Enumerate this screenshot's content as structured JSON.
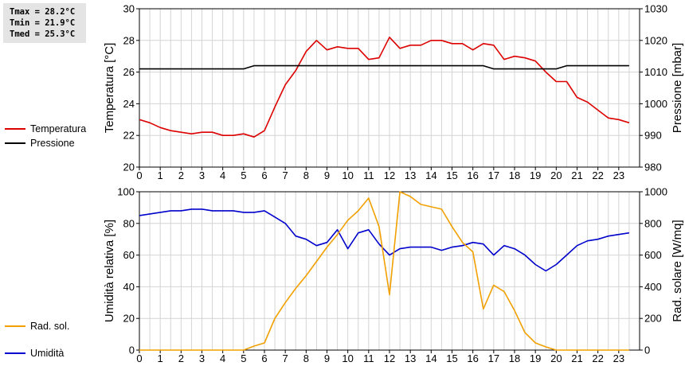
{
  "stats": {
    "tmax": "Tmax = 28.2°C",
    "tmin": "Tmin = 21.9°C",
    "tmed": "Tmed = 25.3°C"
  },
  "legend": {
    "top": [
      {
        "label": "Temperatura",
        "color": "#dd0000"
      },
      {
        "label": "Pressione",
        "color": "#000000"
      }
    ],
    "bottom": [
      {
        "label": "Umidità",
        "color": "#0000cc"
      },
      {
        "label": "Rad. sol.",
        "color": "#f2a000"
      }
    ]
  },
  "chart_data": [
    {
      "type": "line",
      "x_ticks": [
        0,
        1,
        2,
        3,
        4,
        5,
        6,
        7,
        8,
        9,
        10,
        11,
        12,
        13,
        14,
        15,
        16,
        17,
        18,
        19,
        20,
        21,
        22,
        23
      ],
      "xlim": [
        0,
        24
      ],
      "ylabel": "Temperatura [°C]",
      "ylim": [
        20,
        30
      ],
      "y_ticks": [
        20,
        22,
        24,
        26,
        28,
        30
      ],
      "y2label": "Pressione [mbar]",
      "y2lim": [
        980,
        1030
      ],
      "y2_ticks": [
        980,
        990,
        1000,
        1010,
        1020,
        1030
      ],
      "grid": true,
      "series": [
        {
          "name": "Temperatura",
          "axis": "left",
          "color": "#dd0000",
          "x": [
            0,
            0.5,
            1,
            1.5,
            2,
            2.5,
            3,
            3.5,
            4,
            4.5,
            5,
            5.5,
            6,
            6.5,
            7,
            7.5,
            8,
            8.5,
            9,
            9.5,
            10,
            10.5,
            11,
            11.5,
            12,
            12.5,
            13,
            13.5,
            14,
            14.5,
            15,
            15.5,
            16,
            16.5,
            17,
            17.5,
            18,
            18.5,
            19,
            19.5,
            20,
            20.5,
            21,
            21.5,
            22,
            22.5,
            23,
            23.5
          ],
          "values": [
            23.0,
            22.8,
            22.5,
            22.3,
            22.2,
            22.1,
            22.2,
            22.2,
            22.0,
            22.0,
            22.1,
            21.9,
            22.3,
            23.8,
            25.2,
            26.1,
            27.3,
            28.0,
            27.4,
            27.6,
            27.5,
            27.5,
            26.8,
            26.9,
            28.2,
            27.5,
            27.7,
            27.7,
            28.0,
            28.0,
            27.8,
            27.8,
            27.4,
            27.8,
            27.7,
            26.8,
            27.0,
            26.9,
            26.7,
            26.0,
            25.4,
            25.4,
            24.4,
            24.1,
            23.6,
            23.1,
            23.0,
            22.8
          ]
        },
        {
          "name": "Pressione",
          "axis": "right",
          "color": "#000000",
          "x": [
            0,
            5,
            5.5,
            16.5,
            17,
            19.5,
            20,
            20.5,
            23.5
          ],
          "values": [
            1011,
            1011,
            1012,
            1012,
            1011,
            1011,
            1011,
            1012,
            1012
          ]
        }
      ]
    },
    {
      "type": "line",
      "x_ticks": [
        0,
        1,
        2,
        3,
        4,
        5,
        6,
        7,
        8,
        9,
        10,
        11,
        12,
        13,
        14,
        15,
        16,
        17,
        18,
        19,
        20,
        21,
        22,
        23
      ],
      "xlim": [
        0,
        24
      ],
      "ylabel": "Umidità relativa [%]",
      "ylim": [
        0,
        100
      ],
      "y_ticks": [
        0,
        20,
        40,
        60,
        80,
        100
      ],
      "y2label": "Rad. solare [W/mq]",
      "y2lim": [
        0,
        1000
      ],
      "y2_ticks": [
        0,
        200,
        400,
        600,
        800,
        1000
      ],
      "grid": true,
      "series": [
        {
          "name": "Umidità",
          "axis": "left",
          "color": "#0000cc",
          "x": [
            0,
            0.5,
            1,
            1.5,
            2,
            2.5,
            3,
            3.5,
            4,
            4.5,
            5,
            5.5,
            6,
            6.5,
            7,
            7.5,
            8,
            8.5,
            9,
            9.5,
            10,
            10.5,
            11,
            11.5,
            12,
            12.5,
            13,
            13.5,
            14,
            14.5,
            15,
            15.5,
            16,
            16.5,
            17,
            17.5,
            18,
            18.5,
            19,
            19.5,
            20,
            20.5,
            21,
            21.5,
            22,
            22.5,
            23,
            23.5
          ],
          "values": [
            85,
            86,
            87,
            88,
            88,
            89,
            89,
            88,
            88,
            88,
            87,
            87,
            88,
            84,
            80,
            72,
            70,
            66,
            68,
            76,
            64,
            74,
            76,
            67,
            60,
            64,
            65,
            65,
            65,
            63,
            65,
            66,
            68,
            67,
            60,
            66,
            64,
            60,
            54,
            50,
            54,
            60,
            66,
            69,
            70,
            72,
            73,
            74
          ]
        },
        {
          "name": "Rad. sol.",
          "axis": "right",
          "color": "#f2a000",
          "x": [
            0,
            0.5,
            1,
            1.5,
            2,
            2.5,
            3,
            3.5,
            4,
            4.5,
            5,
            5.5,
            6,
            6.5,
            7,
            7.5,
            8,
            8.5,
            9,
            9.5,
            10,
            10.5,
            11,
            11.5,
            12,
            12.5,
            13,
            13.5,
            14,
            14.5,
            15,
            15.5,
            16,
            16.5,
            17,
            17.5,
            18,
            18.5,
            19,
            19.5,
            20,
            20.5,
            21,
            21.5,
            22,
            22.5,
            23,
            23.5
          ],
          "values": [
            0,
            0,
            0,
            0,
            0,
            0,
            0,
            0,
            0,
            0,
            0,
            25,
            45,
            200,
            300,
            390,
            470,
            560,
            650,
            730,
            820,
            880,
            960,
            780,
            350,
            1000,
            970,
            920,
            905,
            890,
            780,
            680,
            620,
            260,
            410,
            370,
            250,
            110,
            45,
            20,
            0,
            0,
            0,
            0,
            0,
            0,
            0,
            0
          ]
        }
      ]
    }
  ]
}
